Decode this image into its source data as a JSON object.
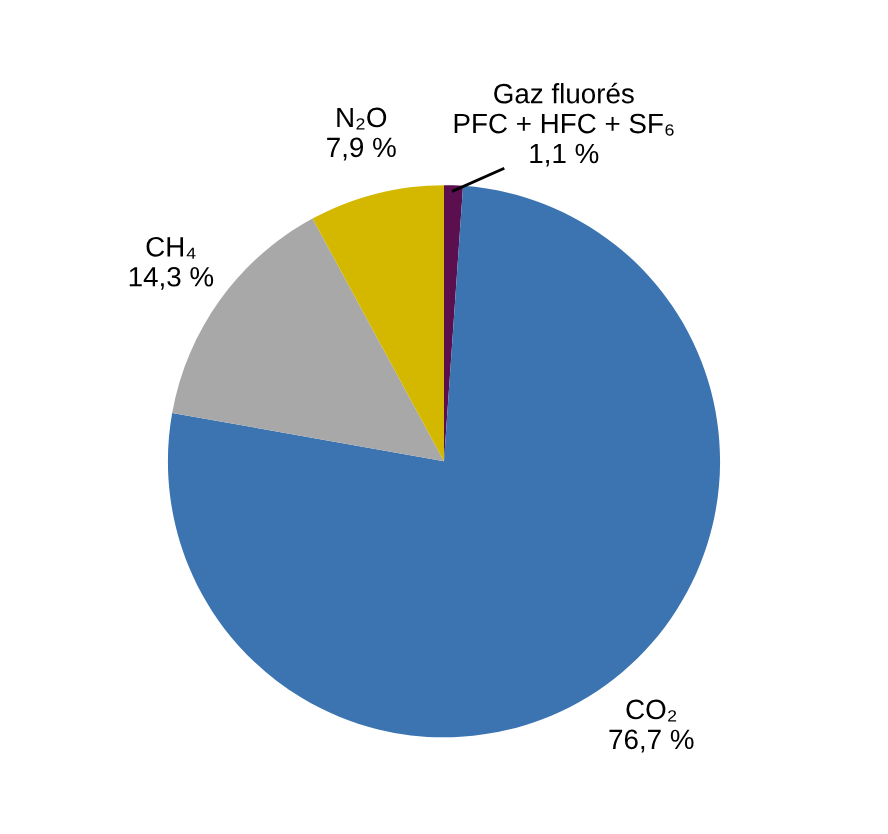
{
  "chart_data": {
    "type": "pie",
    "categories": [
      "Gaz fluorés\nPFC + HFC + SF₆",
      "CO₂",
      "CH₄",
      "N₂O"
    ],
    "values": [
      1.1,
      76.7,
      14.3,
      7.9
    ],
    "value_labels": [
      "1,1 %",
      "76,7 %",
      "14,3 %",
      "7,9 %"
    ],
    "colors": [
      "#5c0f4f",
      "#3b74b0",
      "#a8a8a8",
      "#d4b800"
    ]
  }
}
